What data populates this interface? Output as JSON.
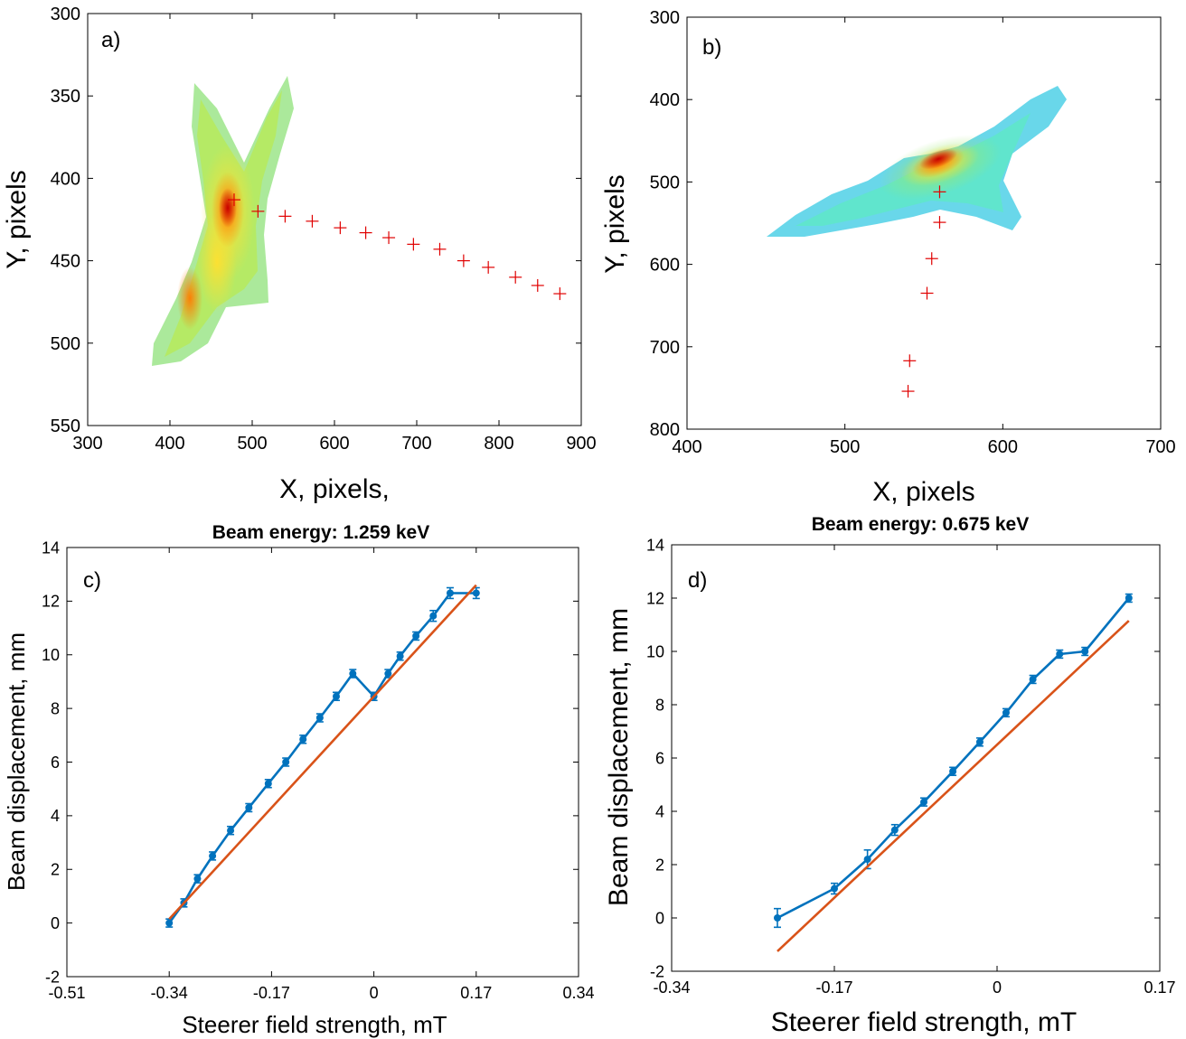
{
  "chart_data": [
    {
      "id": "a",
      "type": "heatmap",
      "panel_label": "a)",
      "title": "",
      "xlabel": "X, pixels,",
      "ylabel": "Y, pixels",
      "xlim": [
        300,
        900
      ],
      "ylim": [
        300,
        550
      ],
      "y_reversed": true,
      "xticks": [
        300,
        400,
        500,
        600,
        700,
        800,
        900
      ],
      "yticks": [
        300,
        350,
        400,
        450,
        500,
        550
      ],
      "markers": {
        "name": "beam centroid",
        "symbol": "+",
        "color": "#e00000",
        "x": [
          478,
          507,
          540,
          573,
          607,
          638,
          666,
          696,
          728,
          757,
          787,
          820,
          847,
          874
        ],
        "y": [
          413,
          420,
          423,
          426,
          430,
          433,
          436,
          440,
          443,
          450,
          454,
          460,
          465,
          470
        ]
      }
    },
    {
      "id": "b",
      "type": "heatmap",
      "panel_label": "b)",
      "title": "",
      "xlabel": "X, pixels",
      "ylabel": "Y, pixels",
      "xlim": [
        400,
        700
      ],
      "ylim": [
        300,
        800
      ],
      "y_reversed": true,
      "xticks": [
        400,
        500,
        600,
        700
      ],
      "yticks": [
        300,
        400,
        500,
        600,
        700,
        800
      ],
      "markers": {
        "name": "beam centroid",
        "symbol": "+",
        "color": "#e00000",
        "x": [
          560,
          560,
          555,
          552,
          541,
          540
        ],
        "y": [
          512,
          549,
          593,
          635,
          717,
          754
        ]
      }
    },
    {
      "id": "c",
      "type": "line",
      "panel_label": "c)",
      "title": "Beam energy: 1.259 keV",
      "xlabel": "Steerer field strength, mT",
      "ylabel": "Beam displacement, mm",
      "xlim": [
        -0.51,
        0.34
      ],
      "ylim": [
        -2,
        14
      ],
      "xticks": [
        -0.51,
        -0.34,
        -0.17,
        0,
        0.17,
        0.34
      ],
      "xtick_labels": [
        "-0.51",
        "-0.34",
        "-0.17",
        "0",
        "0.17",
        "0.34"
      ],
      "yticks": [
        -2,
        0,
        2,
        4,
        6,
        8,
        10,
        12,
        14
      ],
      "series": [
        {
          "name": "measured",
          "color": "#0072BD",
          "x": [
            -0.34,
            -0.3156,
            -0.2931,
            -0.2681,
            -0.2381,
            -0.2077,
            -0.1754,
            -0.1463,
            -0.1177,
            -0.0897,
            -0.0625,
            -0.035,
            0.0,
            0.0236,
            0.0436,
            0.0699,
            0.0986,
            0.1267,
            0.17
          ],
          "y": [
            0.0,
            0.75,
            1.65,
            2.5,
            3.45,
            4.3,
            5.2,
            6.0,
            6.85,
            7.65,
            8.45,
            9.3,
            8.45,
            9.3,
            9.95,
            10.7,
            11.45,
            12.3,
            12.3
          ],
          "error": [
            0.15,
            0.15,
            0.15,
            0.15,
            0.15,
            0.15,
            0.15,
            0.15,
            0.15,
            0.15,
            0.15,
            0.15,
            0.15,
            0.15,
            0.15,
            0.15,
            0.2,
            0.2,
            0.2
          ]
        },
        {
          "name": "linear fit",
          "color": "#D95319",
          "x": [
            -0.34,
            0.17
          ],
          "y": [
            0.15,
            12.6
          ]
        }
      ]
    },
    {
      "id": "d",
      "type": "line",
      "panel_label": "d)",
      "title": "Beam energy: 0.675 keV",
      "xlabel": "Steerer field strength, mT",
      "ylabel": "Beam displacement, mm",
      "xlim": [
        -0.34,
        0.17
      ],
      "ylim": [
        -2,
        14
      ],
      "xticks": [
        -0.34,
        -0.17,
        0,
        0.17
      ],
      "xtick_labels": [
        "-0.34",
        "-0.17",
        "0",
        "0.17"
      ],
      "yticks": [
        -2,
        0,
        2,
        4,
        6,
        8,
        10,
        12,
        14
      ],
      "series": [
        {
          "name": "measured",
          "color": "#0072BD",
          "x": [
            -0.2295,
            -0.17,
            -0.1354,
            -0.1069,
            -0.0765,
            -0.0462,
            -0.018,
            0.0094,
            0.0374,
            0.0654,
            0.0918,
            0.1377
          ],
          "y": [
            0.0,
            1.1,
            2.2,
            3.3,
            4.35,
            5.5,
            6.6,
            7.7,
            8.95,
            9.9,
            10.0,
            12.0
          ],
          "error": [
            0.35,
            0.2,
            0.35,
            0.2,
            0.15,
            0.15,
            0.15,
            0.15,
            0.15,
            0.15,
            0.15,
            0.15
          ]
        },
        {
          "name": "linear fit",
          "color": "#D95319",
          "x": [
            -0.2295,
            0.1377
          ],
          "y": [
            -1.25,
            11.15
          ]
        }
      ]
    }
  ]
}
